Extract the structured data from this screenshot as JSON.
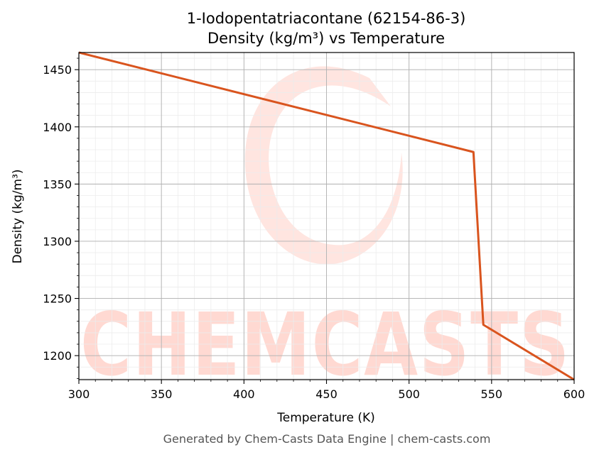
{
  "chart_data": {
    "type": "line",
    "title": "1-Iodopentatriacontane (62154-86-3)",
    "subtitle": "Density (kg/m³) vs Temperature",
    "xlabel": "Temperature (K)",
    "ylabel": "Density (kg/m³)",
    "xlim": [
      300,
      600
    ],
    "ylim": [
      1179,
      1465
    ],
    "xticks": [
      300,
      350,
      400,
      450,
      500,
      550,
      600
    ],
    "yticks": [
      1200,
      1250,
      1300,
      1350,
      1400,
      1450
    ],
    "grid": true,
    "series": [
      {
        "color": "#d9541e",
        "x": [
          300,
          539,
          545,
          600
        ],
        "y": [
          1465,
          1378,
          1227,
          1179
        ]
      }
    ]
  },
  "watermark": {
    "text": "CHEMCASTS",
    "color": "#ffd9d2"
  },
  "footer": "Generated by Chem-Casts Data Engine | chem-casts.com"
}
